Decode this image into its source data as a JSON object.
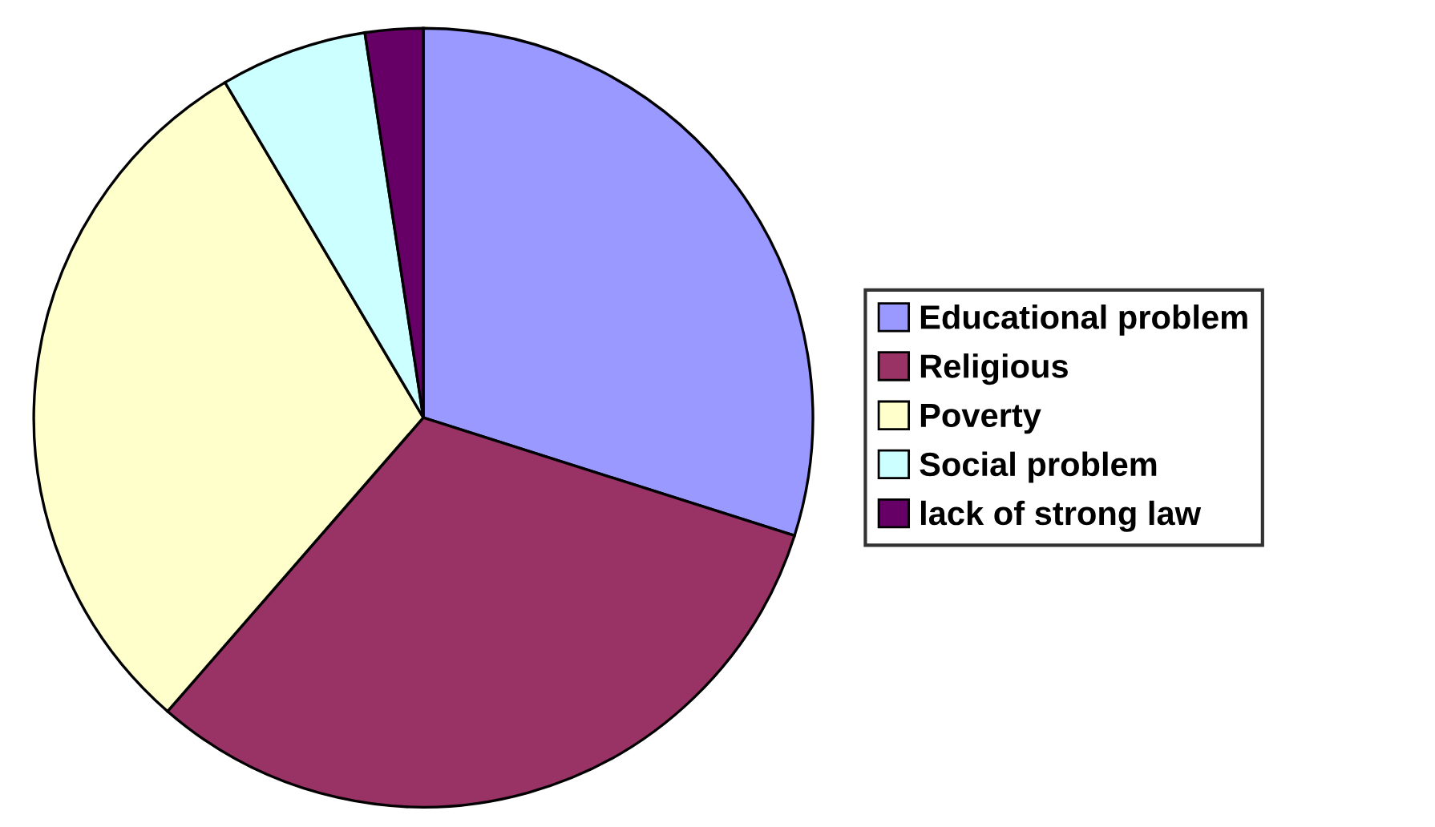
{
  "chart_data": {
    "type": "pie",
    "categories": [
      "Educational problem",
      "Religious",
      "Poverty",
      "Social problem",
      "lack of strong law"
    ],
    "values": [
      29.9,
      31.5,
      30.1,
      6.1,
      2.4
    ],
    "colors": [
      "#9999ff",
      "#993366",
      "#ffffcc",
      "#ccffff",
      "#660066"
    ],
    "legend": "right"
  }
}
